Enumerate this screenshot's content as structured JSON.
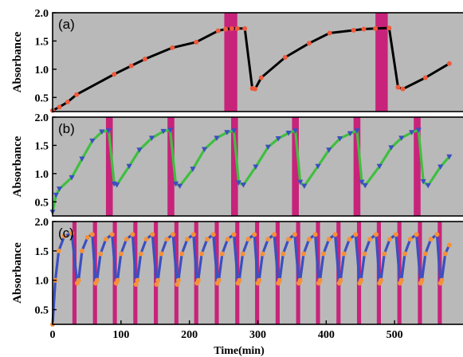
{
  "chart_data": [
    {
      "type": "line",
      "panel_label": "(a)",
      "ylabel": "Absorbance",
      "xlabel": "",
      "xlim": [
        0,
        600
      ],
      "ylim": [
        0.25,
        2.0
      ],
      "yticks": [
        "0.5",
        "1.0",
        "1.5",
        "2.0"
      ],
      "ytick_values": [
        0.5,
        1.0,
        1.5,
        2.0
      ],
      "colors": {
        "background": "#b9b9b9",
        "line": "#000000",
        "marker": "#f05a3c",
        "band": "#c8237a"
      },
      "bands": [
        [
          251,
          270
        ],
        [
          472,
          490
        ]
      ],
      "series": [
        {
          "values": [
            [
              0,
              0.27
            ],
            [
              10,
              0.33
            ],
            [
              22,
              0.42
            ],
            [
              35,
              0.55
            ],
            [
              90,
              0.91
            ],
            [
              115,
              1.06
            ],
            [
              135,
              1.18
            ],
            [
              175,
              1.38
            ],
            [
              210,
              1.48
            ],
            [
              242,
              1.68
            ],
            [
              253,
              1.71
            ],
            [
              262,
              1.72
            ],
            [
              270,
              1.72
            ],
            [
              281,
              1.72
            ],
            [
              292,
              0.66
            ],
            [
              296,
              0.65
            ],
            [
              305,
              0.85
            ],
            [
              340,
              1.21
            ],
            [
              375,
              1.46
            ],
            [
              405,
              1.64
            ],
            [
              440,
              1.69
            ],
            [
              455,
              1.71
            ],
            [
              472,
              1.72
            ],
            [
              492,
              1.73
            ],
            [
              505,
              0.68
            ],
            [
              512,
              0.65
            ],
            [
              545,
              0.85
            ],
            [
              580,
              1.1
            ]
          ]
        }
      ]
    },
    {
      "type": "line",
      "panel_label": "(b)",
      "ylabel": "Absorbance",
      "xlabel": "",
      "xlim": [
        0,
        600
      ],
      "ylim": [
        0.25,
        2.0
      ],
      "yticks": [
        "0.5",
        "1.0",
        "1.5",
        "2.0"
      ],
      "ytick_values": [
        0.5,
        1.0,
        1.5,
        2.0
      ],
      "colors": {
        "background": "#b9b9b9",
        "line": "#3fbf3f",
        "marker": "#3b4fc0",
        "band": "#c8237a"
      },
      "bands": [
        [
          78,
          88
        ],
        [
          168,
          178
        ],
        [
          261,
          271
        ],
        [
          350,
          360
        ],
        [
          440,
          450
        ],
        [
          528,
          538
        ]
      ],
      "series": [
        {
          "values": [
            [
              0,
              0.32
            ],
            [
              5,
              0.62
            ],
            [
              10,
              0.73
            ],
            [
              28,
              0.93
            ],
            [
              43,
              1.26
            ],
            [
              58,
              1.58
            ],
            [
              72,
              1.74
            ],
            [
              82,
              1.76
            ],
            [
              90,
              0.82
            ],
            [
              94,
              0.8
            ],
            [
              112,
              1.13
            ],
            [
              127,
              1.42
            ],
            [
              145,
              1.63
            ],
            [
              162,
              1.75
            ],
            [
              172,
              1.77
            ],
            [
              180,
              0.82
            ],
            [
              186,
              0.78
            ],
            [
              205,
              1.08
            ],
            [
              222,
              1.43
            ],
            [
              240,
              1.63
            ],
            [
              255,
              1.73
            ],
            [
              265,
              1.76
            ],
            [
              272,
              0.84
            ],
            [
              279,
              0.8
            ],
            [
              297,
              1.12
            ],
            [
              315,
              1.47
            ],
            [
              330,
              1.62
            ],
            [
              345,
              1.72
            ],
            [
              355,
              1.76
            ],
            [
              362,
              0.85
            ],
            [
              368,
              0.78
            ],
            [
              388,
              1.13
            ],
            [
              404,
              1.42
            ],
            [
              420,
              1.62
            ],
            [
              435,
              1.71
            ],
            [
              445,
              1.76
            ],
            [
              452,
              0.85
            ],
            [
              457,
              0.79
            ],
            [
              478,
              1.13
            ],
            [
              495,
              1.46
            ],
            [
              510,
              1.63
            ],
            [
              525,
              1.73
            ],
            [
              535,
              1.77
            ],
            [
              542,
              0.86
            ],
            [
              549,
              0.79
            ],
            [
              567,
              1.12
            ],
            [
              580,
              1.3
            ]
          ]
        }
      ]
    },
    {
      "type": "line",
      "panel_label": "(c)",
      "ylabel": "Absorbance",
      "xlabel": "Time(min)",
      "xlim": [
        0,
        600
      ],
      "ylim": [
        0.25,
        2.0
      ],
      "yticks": [
        "0.5",
        "1.0",
        "1.5",
        "2.0"
      ],
      "ytick_values": [
        0.5,
        1.0,
        1.5,
        2.0
      ],
      "xticks": [
        "0",
        "100",
        "200",
        "300",
        "400",
        "500"
      ],
      "xtick_values": [
        0,
        100,
        200,
        300,
        400,
        500
      ],
      "colors": {
        "background": "#b9b9b9",
        "line": "#3b4fc0",
        "marker": "#f5913a",
        "band": "#c8237a"
      },
      "bands": [
        [
          29,
          35
        ],
        [
          59,
          65
        ],
        [
          88,
          94
        ],
        [
          118,
          124
        ],
        [
          148,
          154
        ],
        [
          178,
          184
        ],
        [
          207,
          213
        ],
        [
          237,
          243
        ],
        [
          267,
          273
        ],
        [
          296,
          302
        ],
        [
          326,
          332
        ],
        [
          356,
          362
        ],
        [
          385,
          391
        ],
        [
          415,
          421
        ],
        [
          445,
          451
        ],
        [
          474,
          480
        ],
        [
          504,
          510
        ],
        [
          534,
          540
        ],
        [
          563,
          569
        ]
      ],
      "series": [
        {
          "values": [
            [
              0,
              0.25
            ],
            [
              4,
              1.0
            ],
            [
              9,
              1.5
            ],
            [
              17,
              1.75
            ],
            [
              28,
              1.8
            ],
            [
              36,
              0.95
            ],
            [
              38,
              1.0
            ],
            [
              43,
              1.5
            ],
            [
              51,
              1.73
            ],
            [
              58,
              1.78
            ],
            [
              63,
              0.95
            ],
            [
              65,
              1.0
            ],
            [
              70,
              1.45
            ],
            [
              78,
              1.7
            ],
            [
              87,
              1.78
            ],
            [
              93,
              0.95
            ],
            [
              95,
              1.0
            ],
            [
              100,
              1.45
            ],
            [
              108,
              1.7
            ],
            [
              117,
              1.78
            ],
            [
              122,
              0.93
            ],
            [
              124,
              1.0
            ],
            [
              129,
              1.45
            ],
            [
              137,
              1.7
            ],
            [
              146,
              1.78
            ],
            [
              152,
              0.93
            ],
            [
              154,
              1.0
            ],
            [
              159,
              1.45
            ],
            [
              167,
              1.7
            ],
            [
              176,
              1.78
            ],
            [
              182,
              0.93
            ],
            [
              184,
              1.0
            ],
            [
              189,
              1.45
            ],
            [
              197,
              1.7
            ],
            [
              206,
              1.78
            ],
            [
              211,
              0.95
            ],
            [
              213,
              1.0
            ],
            [
              218,
              1.45
            ],
            [
              226,
              1.7
            ],
            [
              235,
              1.78
            ],
            [
              241,
              0.95
            ],
            [
              243,
              1.0
            ],
            [
              248,
              1.45
            ],
            [
              256,
              1.7
            ],
            [
              265,
              1.78
            ],
            [
              271,
              0.95
            ],
            [
              273,
              1.0
            ],
            [
              278,
              1.45
            ],
            [
              286,
              1.7
            ],
            [
              295,
              1.78
            ],
            [
              300,
              0.95
            ],
            [
              302,
              1.0
            ],
            [
              307,
              1.45
            ],
            [
              315,
              1.7
            ],
            [
              324,
              1.78
            ],
            [
              330,
              0.95
            ],
            [
              332,
              1.0
            ],
            [
              337,
              1.45
            ],
            [
              345,
              1.7
            ],
            [
              354,
              1.78
            ],
            [
              360,
              0.95
            ],
            [
              362,
              1.0
            ],
            [
              367,
              1.45
            ],
            [
              375,
              1.7
            ],
            [
              384,
              1.78
            ],
            [
              389,
              0.95
            ],
            [
              391,
              1.0
            ],
            [
              396,
              1.45
            ],
            [
              404,
              1.7
            ],
            [
              413,
              1.78
            ],
            [
              419,
              0.95
            ],
            [
              421,
              1.0
            ],
            [
              426,
              1.45
            ],
            [
              434,
              1.7
            ],
            [
              443,
              1.78
            ],
            [
              449,
              0.95
            ],
            [
              451,
              1.0
            ],
            [
              456,
              1.45
            ],
            [
              464,
              1.7
            ],
            [
              473,
              1.78
            ],
            [
              478,
              0.95
            ],
            [
              480,
              1.0
            ],
            [
              485,
              1.45
            ],
            [
              493,
              1.7
            ],
            [
              502,
              1.78
            ],
            [
              508,
              0.95
            ],
            [
              510,
              1.0
            ],
            [
              515,
              1.45
            ],
            [
              523,
              1.7
            ],
            [
              532,
              1.78
            ],
            [
              538,
              0.95
            ],
            [
              540,
              1.0
            ],
            [
              545,
              1.45
            ],
            [
              553,
              1.7
            ],
            [
              562,
              1.78
            ],
            [
              567,
              0.95
            ],
            [
              569,
              1.0
            ],
            [
              574,
              1.45
            ],
            [
              580,
              1.6
            ]
          ]
        }
      ]
    }
  ]
}
